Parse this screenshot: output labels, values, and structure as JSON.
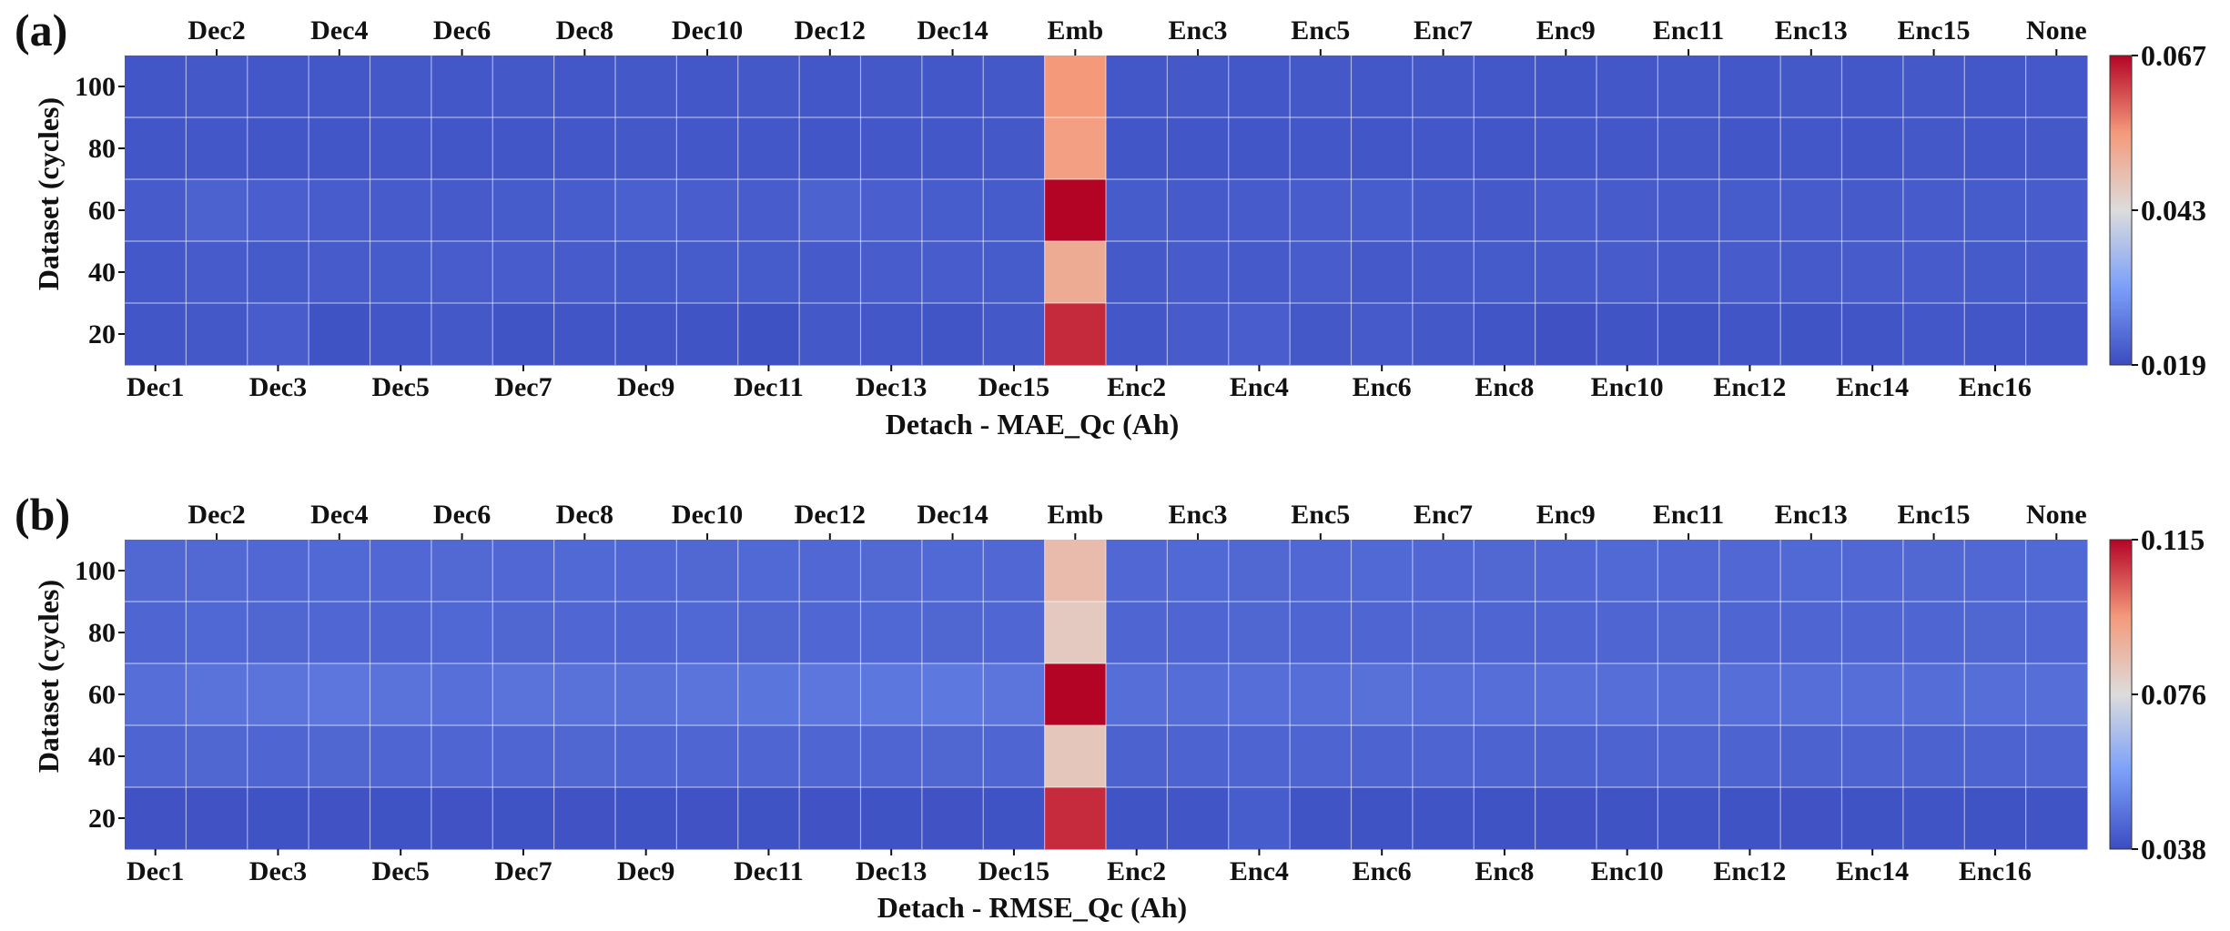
{
  "chart_data": [
    {
      "type": "heatmap",
      "panel_label": "(a)",
      "xlabel": "Detach - MAE_Qc (Ah)",
      "ylabel": "Dataset (cycles)",
      "columns": [
        "Dec1",
        "Dec2",
        "Dec3",
        "Dec4",
        "Dec5",
        "Dec6",
        "Dec7",
        "Dec8",
        "Dec9",
        "Dec10",
        "Dec11",
        "Dec12",
        "Dec13",
        "Dec14",
        "Dec15",
        "Emb",
        "Enc2",
        "Enc3",
        "Enc4",
        "Enc5",
        "Enc6",
        "Enc7",
        "Enc8",
        "Enc9",
        "Enc10",
        "Enc11",
        "Enc12",
        "Enc13",
        "Enc14",
        "Enc15",
        "Enc16",
        "None"
      ],
      "bottom_tick_labels": [
        "Dec1",
        "Dec3",
        "Dec5",
        "Dec7",
        "Dec9",
        "Dec11",
        "Dec13",
        "Dec15",
        "Enc2",
        "Enc4",
        "Enc6",
        "Enc8",
        "Enc10",
        "Enc12",
        "Enc14",
        "Enc16"
      ],
      "top_tick_labels": [
        "Dec2",
        "Dec4",
        "Dec6",
        "Dec8",
        "Dec10",
        "Dec12",
        "Dec14",
        "Emb",
        "Enc3",
        "Enc5",
        "Enc7",
        "Enc9",
        "Enc11",
        "Enc13",
        "Enc15",
        "None"
      ],
      "rows": [
        "100",
        "80",
        "60",
        "40",
        "20"
      ],
      "values": [
        [
          0.0205,
          0.0207,
          0.0206,
          0.0206,
          0.0207,
          0.0206,
          0.0207,
          0.0206,
          0.0207,
          0.0206,
          0.0207,
          0.0206,
          0.0207,
          0.0206,
          0.0207,
          0.055,
          0.0206,
          0.0207,
          0.0206,
          0.0207,
          0.0206,
          0.0207,
          0.0206,
          0.0205,
          0.0206,
          0.0207,
          0.0206,
          0.0207,
          0.0206,
          0.0207,
          0.0206,
          0.0208
        ],
        [
          0.0205,
          0.0206,
          0.0205,
          0.0204,
          0.0206,
          0.0204,
          0.0205,
          0.0206,
          0.0207,
          0.0206,
          0.0206,
          0.0205,
          0.0206,
          0.0206,
          0.0207,
          0.054,
          0.0205,
          0.0204,
          0.0205,
          0.0206,
          0.0205,
          0.0206,
          0.0205,
          0.0206,
          0.0206,
          0.0207,
          0.0205,
          0.0206,
          0.0205,
          0.0207,
          0.0206,
          0.0207
        ],
        [
          0.0212,
          0.0222,
          0.0218,
          0.0214,
          0.0212,
          0.021,
          0.0213,
          0.0215,
          0.0219,
          0.0216,
          0.0214,
          0.0222,
          0.0218,
          0.0215,
          0.0213,
          0.067,
          0.0213,
          0.021,
          0.0212,
          0.0214,
          0.0215,
          0.0211,
          0.0209,
          0.0214,
          0.0212,
          0.021,
          0.0213,
          0.0212,
          0.021,
          0.0212,
          0.0213,
          0.0214
        ],
        [
          0.0208,
          0.0212,
          0.0211,
          0.0212,
          0.0213,
          0.0214,
          0.0214,
          0.0212,
          0.0211,
          0.0213,
          0.0213,
          0.021,
          0.0214,
          0.0214,
          0.0213,
          0.052,
          0.0209,
          0.0212,
          0.021,
          0.0214,
          0.0209,
          0.021,
          0.0211,
          0.021,
          0.0212,
          0.0209,
          0.0212,
          0.021,
          0.0212,
          0.0212,
          0.0211,
          0.0212
        ],
        [
          0.0204,
          0.0207,
          0.0214,
          0.02,
          0.0204,
          0.0207,
          0.0201,
          0.0203,
          0.0203,
          0.0201,
          0.0198,
          0.0207,
          0.0206,
          0.0203,
          0.0207,
          0.064,
          0.0206,
          0.0212,
          0.0216,
          0.0207,
          0.021,
          0.0207,
          0.0203,
          0.0197,
          0.0202,
          0.02,
          0.0203,
          0.0202,
          0.0203,
          0.0206,
          0.0205,
          0.0204
        ]
      ],
      "colorbar": {
        "min": 0.019,
        "max": 0.067,
        "tick_labels": [
          "0.067",
          "0.043",
          "0.019"
        ]
      },
      "colormap": "coolwarm",
      "grid": true,
      "legend": "colorbar right"
    },
    {
      "type": "heatmap",
      "panel_label": "(b)",
      "xlabel": "Detach - RMSE_Qc (Ah)",
      "ylabel": "Dataset (cycles)",
      "columns": [
        "Dec1",
        "Dec2",
        "Dec3",
        "Dec4",
        "Dec5",
        "Dec6",
        "Dec7",
        "Dec8",
        "Dec9",
        "Dec10",
        "Dec11",
        "Dec12",
        "Dec13",
        "Dec14",
        "Dec15",
        "Emb",
        "Enc2",
        "Enc3",
        "Enc4",
        "Enc5",
        "Enc6",
        "Enc7",
        "Enc8",
        "Enc9",
        "Enc10",
        "Enc11",
        "Enc12",
        "Enc13",
        "Enc14",
        "Enc15",
        "Enc16",
        "None"
      ],
      "bottom_tick_labels": [
        "Dec1",
        "Dec3",
        "Dec5",
        "Dec7",
        "Dec9",
        "Dec11",
        "Dec13",
        "Dec15",
        "Enc2",
        "Enc4",
        "Enc6",
        "Enc8",
        "Enc10",
        "Enc12",
        "Enc14",
        "Enc16"
      ],
      "top_tick_labels": [
        "Dec2",
        "Dec4",
        "Dec6",
        "Dec8",
        "Dec10",
        "Dec12",
        "Dec14",
        "Emb",
        "Enc3",
        "Enc5",
        "Enc7",
        "Enc9",
        "Enc11",
        "Enc13",
        "Enc15",
        "None"
      ],
      "rows": [
        "100",
        "80",
        "60",
        "40",
        "20"
      ],
      "values": [
        [
          0.0445,
          0.0448,
          0.0446,
          0.0447,
          0.0446,
          0.0448,
          0.0446,
          0.0447,
          0.0446,
          0.0445,
          0.0447,
          0.0446,
          0.0448,
          0.0447,
          0.0446,
          0.086,
          0.0446,
          0.0447,
          0.0445,
          0.0446,
          0.0447,
          0.0446,
          0.0445,
          0.0446,
          0.0447,
          0.0446,
          0.0446,
          0.0447,
          0.0446,
          0.0445,
          0.0446,
          0.0447
        ],
        [
          0.044,
          0.0444,
          0.0442,
          0.0443,
          0.0441,
          0.0444,
          0.0442,
          0.0443,
          0.0441,
          0.0444,
          0.0442,
          0.0443,
          0.0444,
          0.0442,
          0.0443,
          0.082,
          0.0441,
          0.044,
          0.0442,
          0.0441,
          0.044,
          0.0442,
          0.0441,
          0.044,
          0.0441,
          0.0442,
          0.044,
          0.0441,
          0.044,
          0.0441,
          0.0442,
          0.0443
        ],
        [
          0.0462,
          0.047,
          0.0472,
          0.0478,
          0.047,
          0.0464,
          0.047,
          0.0468,
          0.0466,
          0.0472,
          0.0474,
          0.0478,
          0.048,
          0.0482,
          0.0476,
          0.115,
          0.0462,
          0.0458,
          0.046,
          0.0462,
          0.0466,
          0.0462,
          0.046,
          0.0464,
          0.046,
          0.0458,
          0.046,
          0.0462,
          0.046,
          0.0458,
          0.046,
          0.0462
        ],
        [
          0.0436,
          0.0442,
          0.044,
          0.0442,
          0.044,
          0.0441,
          0.044,
          0.0442,
          0.044,
          0.0441,
          0.0439,
          0.044,
          0.0441,
          0.0442,
          0.0441,
          0.083,
          0.043,
          0.0434,
          0.0438,
          0.0436,
          0.0434,
          0.0436,
          0.0434,
          0.0432,
          0.0434,
          0.0436,
          0.0434,
          0.0432,
          0.0434,
          0.0432,
          0.0434,
          0.0436
        ],
        [
          0.0395,
          0.0395,
          0.0396,
          0.0395,
          0.0396,
          0.0395,
          0.0396,
          0.0395,
          0.0396,
          0.0395,
          0.0396,
          0.0395,
          0.0396,
          0.0395,
          0.0396,
          0.11,
          0.0398,
          0.04,
          0.042,
          0.0398,
          0.0396,
          0.0398,
          0.0396,
          0.0395,
          0.0396,
          0.0398,
          0.0396,
          0.0395,
          0.0396,
          0.0398,
          0.0396,
          0.0398
        ]
      ],
      "colorbar": {
        "min": 0.038,
        "max": 0.115,
        "tick_labels": [
          "0.115",
          "0.076",
          "0.038"
        ]
      },
      "colormap": "coolwarm",
      "grid": true,
      "legend": "colorbar right"
    }
  ]
}
